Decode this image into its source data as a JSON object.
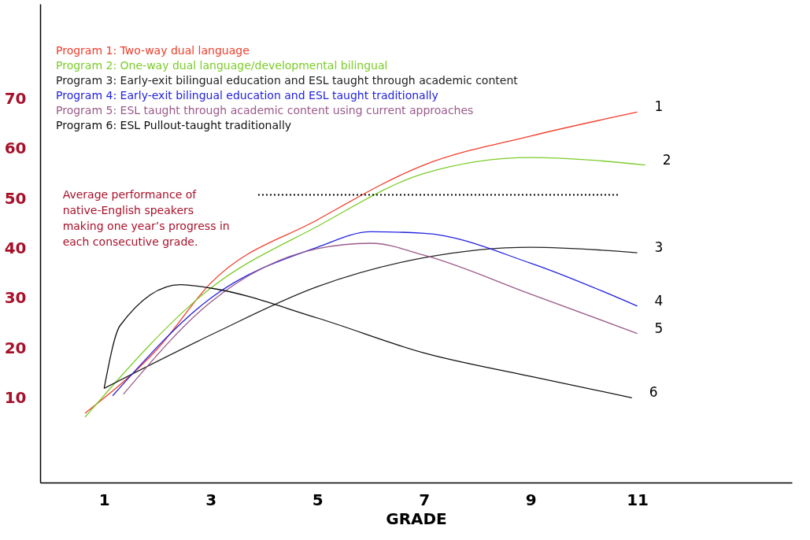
{
  "chart_data": {
    "type": "line",
    "xlabel": "GRADE",
    "xlim": [
      -0.2,
      13.9
    ],
    "xticks": [
      1,
      3,
      5,
      7,
      9,
      11
    ],
    "ylim": [
      -7,
      89
    ],
    "yticks": [
      10,
      20,
      30,
      40,
      50,
      60,
      70
    ],
    "grid": false,
    "legend": "top left",
    "marker": "none",
    "line_style": "solid",
    "series": [
      {
        "name": "Program 1: Two-way dual language",
        "color": "#f03c2a",
        "x": [
          0.64,
          2,
          3,
          5,
          7,
          9,
          11
        ],
        "values": [
          6.9,
          19.8,
          33,
          45.7,
          56.7,
          62.5,
          67.3
        ]
      },
      {
        "name": "Program 2: One-way dual language/developmental bilingual",
        "color": "#7ccc2a",
        "x": [
          0.64,
          3,
          5,
          7,
          9,
          11.15
        ],
        "values": [
          6.1,
          32,
          44.4,
          55,
          58.2,
          56.7
        ]
      },
      {
        "name": "Program 3: Early-exit bilingual education and ESL taught through academic content",
        "color": "#222222",
        "x": [
          1,
          3,
          5,
          7,
          9,
          11
        ],
        "values": [
          11.9,
          22.6,
          32.3,
          38.1,
          40.2,
          39.1
        ]
      },
      {
        "name": "Program 4: Early-exit bilingual education and ESL taught traditionally",
        "color": "#2222e0",
        "x": [
          1.16,
          3,
          5,
          6,
          7,
          9,
          11
        ],
        "values": [
          10.4,
          30,
          40.2,
          43.3,
          43,
          37,
          28.4
        ]
      },
      {
        "name": "Program 5: ESL taught through academic content using current approaches",
        "color": "#9a5a8a",
        "x": [
          1.36,
          3,
          5,
          6,
          7,
          9,
          11
        ],
        "values": [
          10.7,
          29.2,
          39.9,
          41,
          38.6,
          30.8,
          22.9
        ]
      },
      {
        "name": "Program 6: ESL Pullout-taught traditionally",
        "color": "#101010",
        "x": [
          1,
          1.3,
          2.43,
          3,
          5,
          7,
          9,
          10.9
        ],
        "values": [
          11.9,
          24.5,
          32.7,
          32,
          26,
          19,
          14.3,
          10.0
        ]
      }
    ],
    "ref_lines": [
      {
        "axis": "y",
        "value": 50.7,
        "label": "Average performance of\nnative-English speakers\nmaking one year’s progress in\neach consecutive grade.",
        "color": "#000000",
        "line_style": "dotted"
      }
    ],
    "annotations": [
      {
        "text": "1",
        "x": 11,
        "y": 67.3
      },
      {
        "text": "2",
        "x": 11.15,
        "y": 56.7
      },
      {
        "text": "3",
        "x": 11,
        "y": 39.1
      },
      {
        "text": "4",
        "x": 11,
        "y": 28.4
      },
      {
        "text": "5",
        "x": 11,
        "y": 22.9
      },
      {
        "text": "6",
        "x": 10.9,
        "y": 10.0
      }
    ]
  }
}
